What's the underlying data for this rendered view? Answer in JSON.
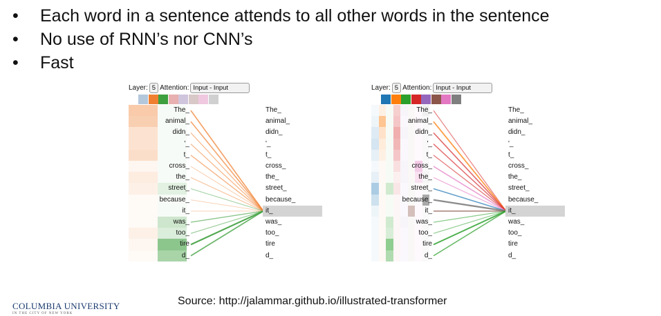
{
  "bullets": [
    "Each word in a sentence attends to all other words in the sentence",
    "No use of RNN’s nor CNN’s",
    "Fast"
  ],
  "bullet_glyph": "•",
  "tokens": [
    "The_",
    "animal_",
    "didn_",
    "'_",
    "t_",
    "cross_",
    "the_",
    "street_",
    "because_",
    "it_",
    "was_",
    "too_",
    "tire",
    "d_"
  ],
  "panels": [
    {
      "layer_label": "Layer:",
      "layer_value": "5",
      "attention_label": "Attention:",
      "attention_value": "Input - Input",
      "head_colors": [
        "#b4c8dc",
        "#f08030",
        "#3fa03f",
        "#e8b0b0",
        "#cfc5dc",
        "#d8c8c8",
        "#f0c8e0",
        "#d0d0d0"
      ],
      "highlight_index": 9,
      "heads": [
        {
          "color": "#f08030",
          "weights": [
            0.55,
            0.5,
            0.3,
            0.3,
            0.35,
            0.1,
            0.2,
            0.15,
            0.05,
            0.05,
            0.05,
            0.15,
            0.1,
            0.05
          ]
        },
        {
          "color": "#3fa03f",
          "weights": [
            0,
            0,
            0,
            0,
            0,
            0,
            0,
            0.2,
            0,
            0,
            0.35,
            0.25,
            0.8,
            0.6
          ]
        }
      ]
    },
    {
      "layer_label": "Layer:",
      "layer_value": "5",
      "attention_label": "Attention:",
      "attention_value": "Input - Input",
      "head_colors": [
        "#1f77b4",
        "#ff7f0e",
        "#2ca02c",
        "#d62728",
        "#9467bd",
        "#8c564b",
        "#e377c2",
        "#7f7f7f"
      ],
      "highlight_index": 9,
      "heads": [
        {
          "color": "#1f77b4",
          "weights": [
            0.05,
            0.1,
            0.2,
            0.25,
            0.15,
            0.05,
            0.15,
            0.5,
            0.3,
            0.1,
            0.05,
            0.05,
            0.05,
            0.05
          ]
        },
        {
          "color": "#ff7f0e",
          "weights": [
            0.15,
            0.6,
            0.3,
            0.2,
            0.15,
            0.05,
            0.05,
            0.05,
            0.05,
            0.05,
            0.05,
            0.05,
            0.05,
            0.05
          ]
        },
        {
          "color": "#2ca02c",
          "weights": [
            0.05,
            0.05,
            0.05,
            0.05,
            0.05,
            0.05,
            0.05,
            0.3,
            0.05,
            0.05,
            0.3,
            0.25,
            0.7,
            0.5
          ]
        },
        {
          "color": "#d62728",
          "weights": [
            0.3,
            0.35,
            0.5,
            0.45,
            0.35,
            0.2,
            0.1,
            0.15,
            0.05,
            0.05,
            0.05,
            0.05,
            0.05,
            0.05
          ]
        },
        {
          "color": "#9467bd",
          "weights": [
            0.1,
            0.05,
            0.1,
            0.05,
            0.05,
            0.1,
            0.1,
            0.05,
            0.05,
            0.05,
            0.1,
            0.05,
            0.05,
            0.05
          ]
        },
        {
          "color": "#8c564b",
          "weights": [
            0.05,
            0.05,
            0.05,
            0.05,
            0.05,
            0.05,
            0.05,
            0.05,
            0.05,
            0.5,
            0.05,
            0.05,
            0.05,
            0.05
          ]
        },
        {
          "color": "#e377c2",
          "weights": [
            0.05,
            0.05,
            0.05,
            0.05,
            0.05,
            0.5,
            0.3,
            0.05,
            0.05,
            0.05,
            0.05,
            0.05,
            0.05,
            0.05
          ]
        },
        {
          "color": "#7f7f7f",
          "weights": [
            0.15,
            0.05,
            0.05,
            0.05,
            0.05,
            0.05,
            0.1,
            0.05,
            0.9,
            0.05,
            0.05,
            0.05,
            0.05,
            0.05
          ]
        }
      ]
    }
  ],
  "source": "Source: http://jalammar.github.io/illustrated-transformer",
  "logo": {
    "name": "COLUMBIA UNIVERSITY",
    "sub": "IN THE CITY OF NEW YORK"
  }
}
